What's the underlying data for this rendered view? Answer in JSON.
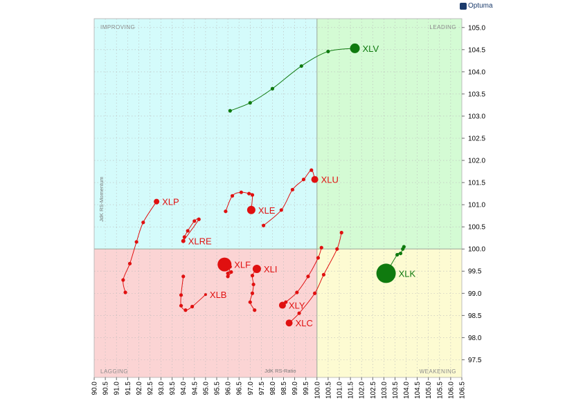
{
  "brand": "Optuma",
  "chart_data": {
    "type": "scatter",
    "subtype": "relative-rotation-graph",
    "xlabel": "JdK RS-Ratio",
    "ylabel": "JdK RS-Momentum",
    "xlim": [
      90.0,
      106.5
    ],
    "ylim": [
      97.1,
      105.2
    ],
    "x_ticks": [
      "90.0",
      "90.5",
      "91.0",
      "91.5",
      "92.0",
      "92.5",
      "93.0",
      "93.5",
      "94.0",
      "94.5",
      "95.0",
      "95.5",
      "96.0",
      "96.5",
      "97.0",
      "97.5",
      "98.0",
      "98.5",
      "99.0",
      "99.5",
      "100.0",
      "100.5",
      "101.0",
      "101.5",
      "102.0",
      "102.5",
      "103.0",
      "103.5",
      "104.0",
      "104.5",
      "105.0",
      "105.5",
      "106.0",
      "106.5"
    ],
    "y_ticks": [
      "105.0",
      "104.5",
      "104.0",
      "103.5",
      "103.0",
      "102.5",
      "102.0",
      "101.5",
      "101.0",
      "100.5",
      "100.0",
      "99.5",
      "99.0",
      "98.5",
      "98.0",
      "97.5"
    ],
    "center": {
      "x": 100.0,
      "y": 100.0
    },
    "quadrants": {
      "improving": {
        "label": "IMPROVING",
        "color": "#d4fbfb"
      },
      "leading": {
        "label": "LEADING",
        "color": "#d4fbd4"
      },
      "lagging": {
        "label": "LAGGING",
        "color": "#fbd4d4"
      },
      "weakening": {
        "label": "WEAKENING",
        "color": "#fdfbd2"
      }
    },
    "grid": true,
    "series": [
      {
        "name": "XLV",
        "color": "#0f7a0f",
        "head_size": 7,
        "x": [
          96.1,
          97.0,
          98.0,
          99.3,
          100.5,
          101.7
        ],
        "y": [
          103.12,
          103.3,
          103.62,
          104.13,
          104.46,
          104.53
        ]
      },
      {
        "name": "XLK",
        "color": "#0f7a0f",
        "head_size": 14,
        "x": [
          103.9,
          103.85,
          103.75,
          103.6,
          103.1
        ],
        "y": [
          100.05,
          100.0,
          99.9,
          99.87,
          99.45
        ]
      },
      {
        "name": "XLU",
        "color": "#e01010",
        "head_size": 5,
        "x": [
          97.6,
          98.4,
          98.9,
          99.4,
          99.75,
          99.9
        ],
        "y": [
          100.53,
          100.88,
          101.34,
          101.57,
          101.78,
          101.57
        ]
      },
      {
        "name": "XLE",
        "color": "#e01010",
        "head_size": 6,
        "x": [
          95.9,
          96.2,
          96.6,
          96.95,
          97.1,
          97.05
        ],
        "y": [
          100.85,
          101.2,
          101.28,
          101.25,
          101.22,
          100.88
        ]
      },
      {
        "name": "XLRE",
        "color": "#e01010",
        "head_size": 3,
        "x": [
          94.0,
          94.05,
          94.2,
          94.5,
          94.7,
          94.0
        ],
        "y": [
          100.18,
          100.27,
          100.41,
          100.63,
          100.67,
          100.18
        ]
      },
      {
        "name": "XLP",
        "color": "#e01010",
        "head_size": 4,
        "x": [
          91.4,
          91.3,
          91.6,
          91.9,
          92.2,
          92.8
        ],
        "y": [
          99.02,
          99.3,
          99.67,
          100.16,
          100.6,
          101.07
        ]
      },
      {
        "name": "XLF",
        "color": "#e01010",
        "head_size": 10,
        "x": [
          96.0,
          96.15,
          96.0,
          96.1,
          95.9,
          95.85
        ],
        "y": [
          99.45,
          99.48,
          99.38,
          99.6,
          99.55,
          99.65
        ]
      },
      {
        "name": "XLI",
        "color": "#e01010",
        "head_size": 6,
        "x": [
          97.2,
          97.0,
          97.1,
          97.15,
          97.1,
          97.3
        ],
        "y": [
          98.62,
          98.8,
          99.0,
          99.2,
          99.4,
          99.55
        ]
      },
      {
        "name": "XLB",
        "color": "#e01010",
        "head_size": 2,
        "x": [
          94.0,
          93.9,
          93.9,
          94.1,
          94.4,
          95.0
        ],
        "y": [
          99.38,
          98.96,
          98.72,
          98.62,
          98.7,
          98.97
        ]
      },
      {
        "name": "XLY",
        "color": "#e01010",
        "head_size": 5,
        "x": [
          100.2,
          100.05,
          99.6,
          99.1,
          98.6,
          98.45
        ],
        "y": [
          100.03,
          99.8,
          99.38,
          99.02,
          98.8,
          98.73
        ]
      },
      {
        "name": "XLC",
        "color": "#e01010",
        "head_size": 5,
        "x": [
          101.1,
          100.9,
          100.3,
          99.9,
          99.2,
          98.75
        ],
        "y": [
          100.37,
          100.0,
          99.42,
          99.0,
          98.55,
          98.33
        ]
      }
    ]
  }
}
